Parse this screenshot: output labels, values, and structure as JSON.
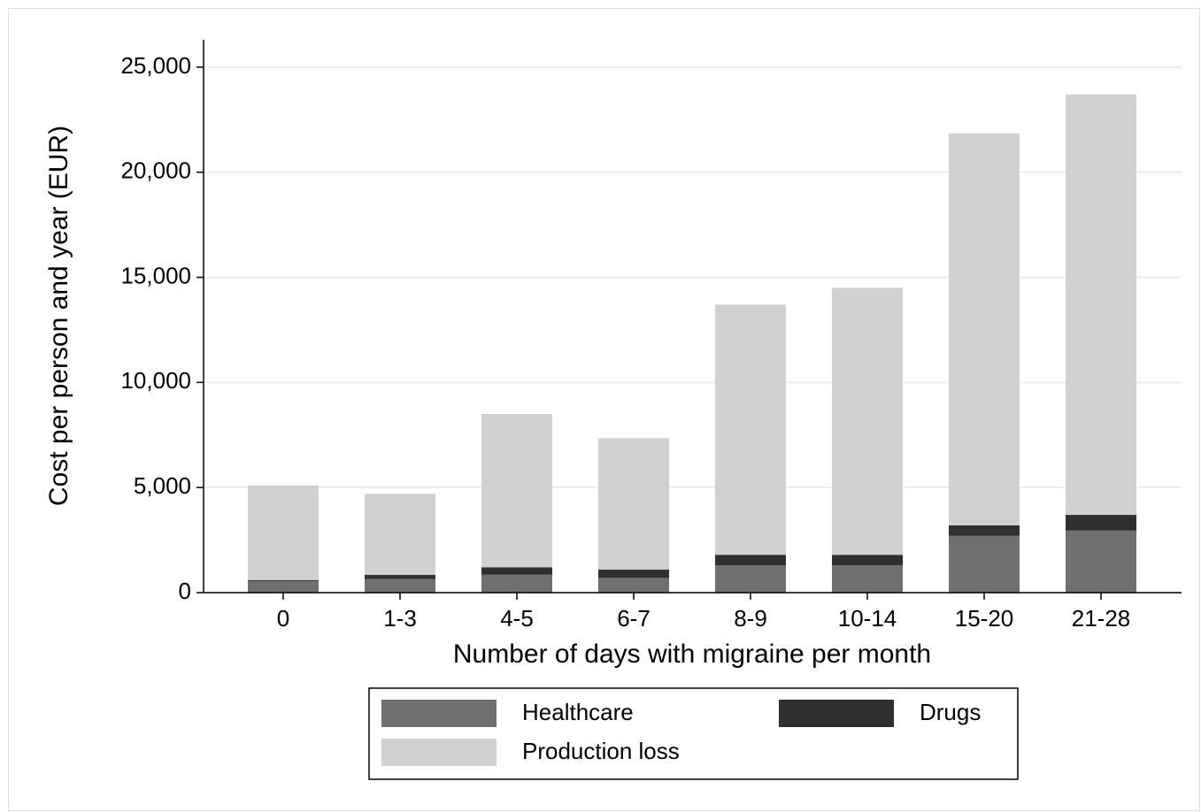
{
  "chart_data": {
    "type": "stacked_bar",
    "x_label": "Number of days with migraine per month",
    "y_label": "Cost per person and year (EUR)",
    "categories": [
      "0",
      "1-3",
      "4-5",
      "6-7",
      "8-9",
      "10-14",
      "15-20",
      "21-28"
    ],
    "series": [
      {
        "name": "Healthcare",
        "color": "#707070",
        "values": [
          550,
          650,
          850,
          700,
          1300,
          1300,
          2700,
          2950
        ]
      },
      {
        "name": "Drugs",
        "color": "#303030",
        "values": [
          50,
          200,
          350,
          400,
          500,
          500,
          500,
          750
        ]
      },
      {
        "name": "Production loss",
        "color": "#d0d0d0",
        "values": [
          4500,
          3850,
          7300,
          6250,
          11900,
          12700,
          18650,
          20000
        ]
      }
    ],
    "ylim": [
      0,
      26300
    ],
    "yticks": [
      0,
      {
        "value": 5000,
        "label": "5,000"
      },
      {
        "value": 10000,
        "label": "10,000"
      },
      {
        "value": 15000,
        "label": "15,000"
      },
      {
        "value": 20000,
        "label": "20,000"
      },
      {
        "value": 25000,
        "label": "25,000"
      }
    ],
    "grid": true,
    "legend": "bottom"
  }
}
